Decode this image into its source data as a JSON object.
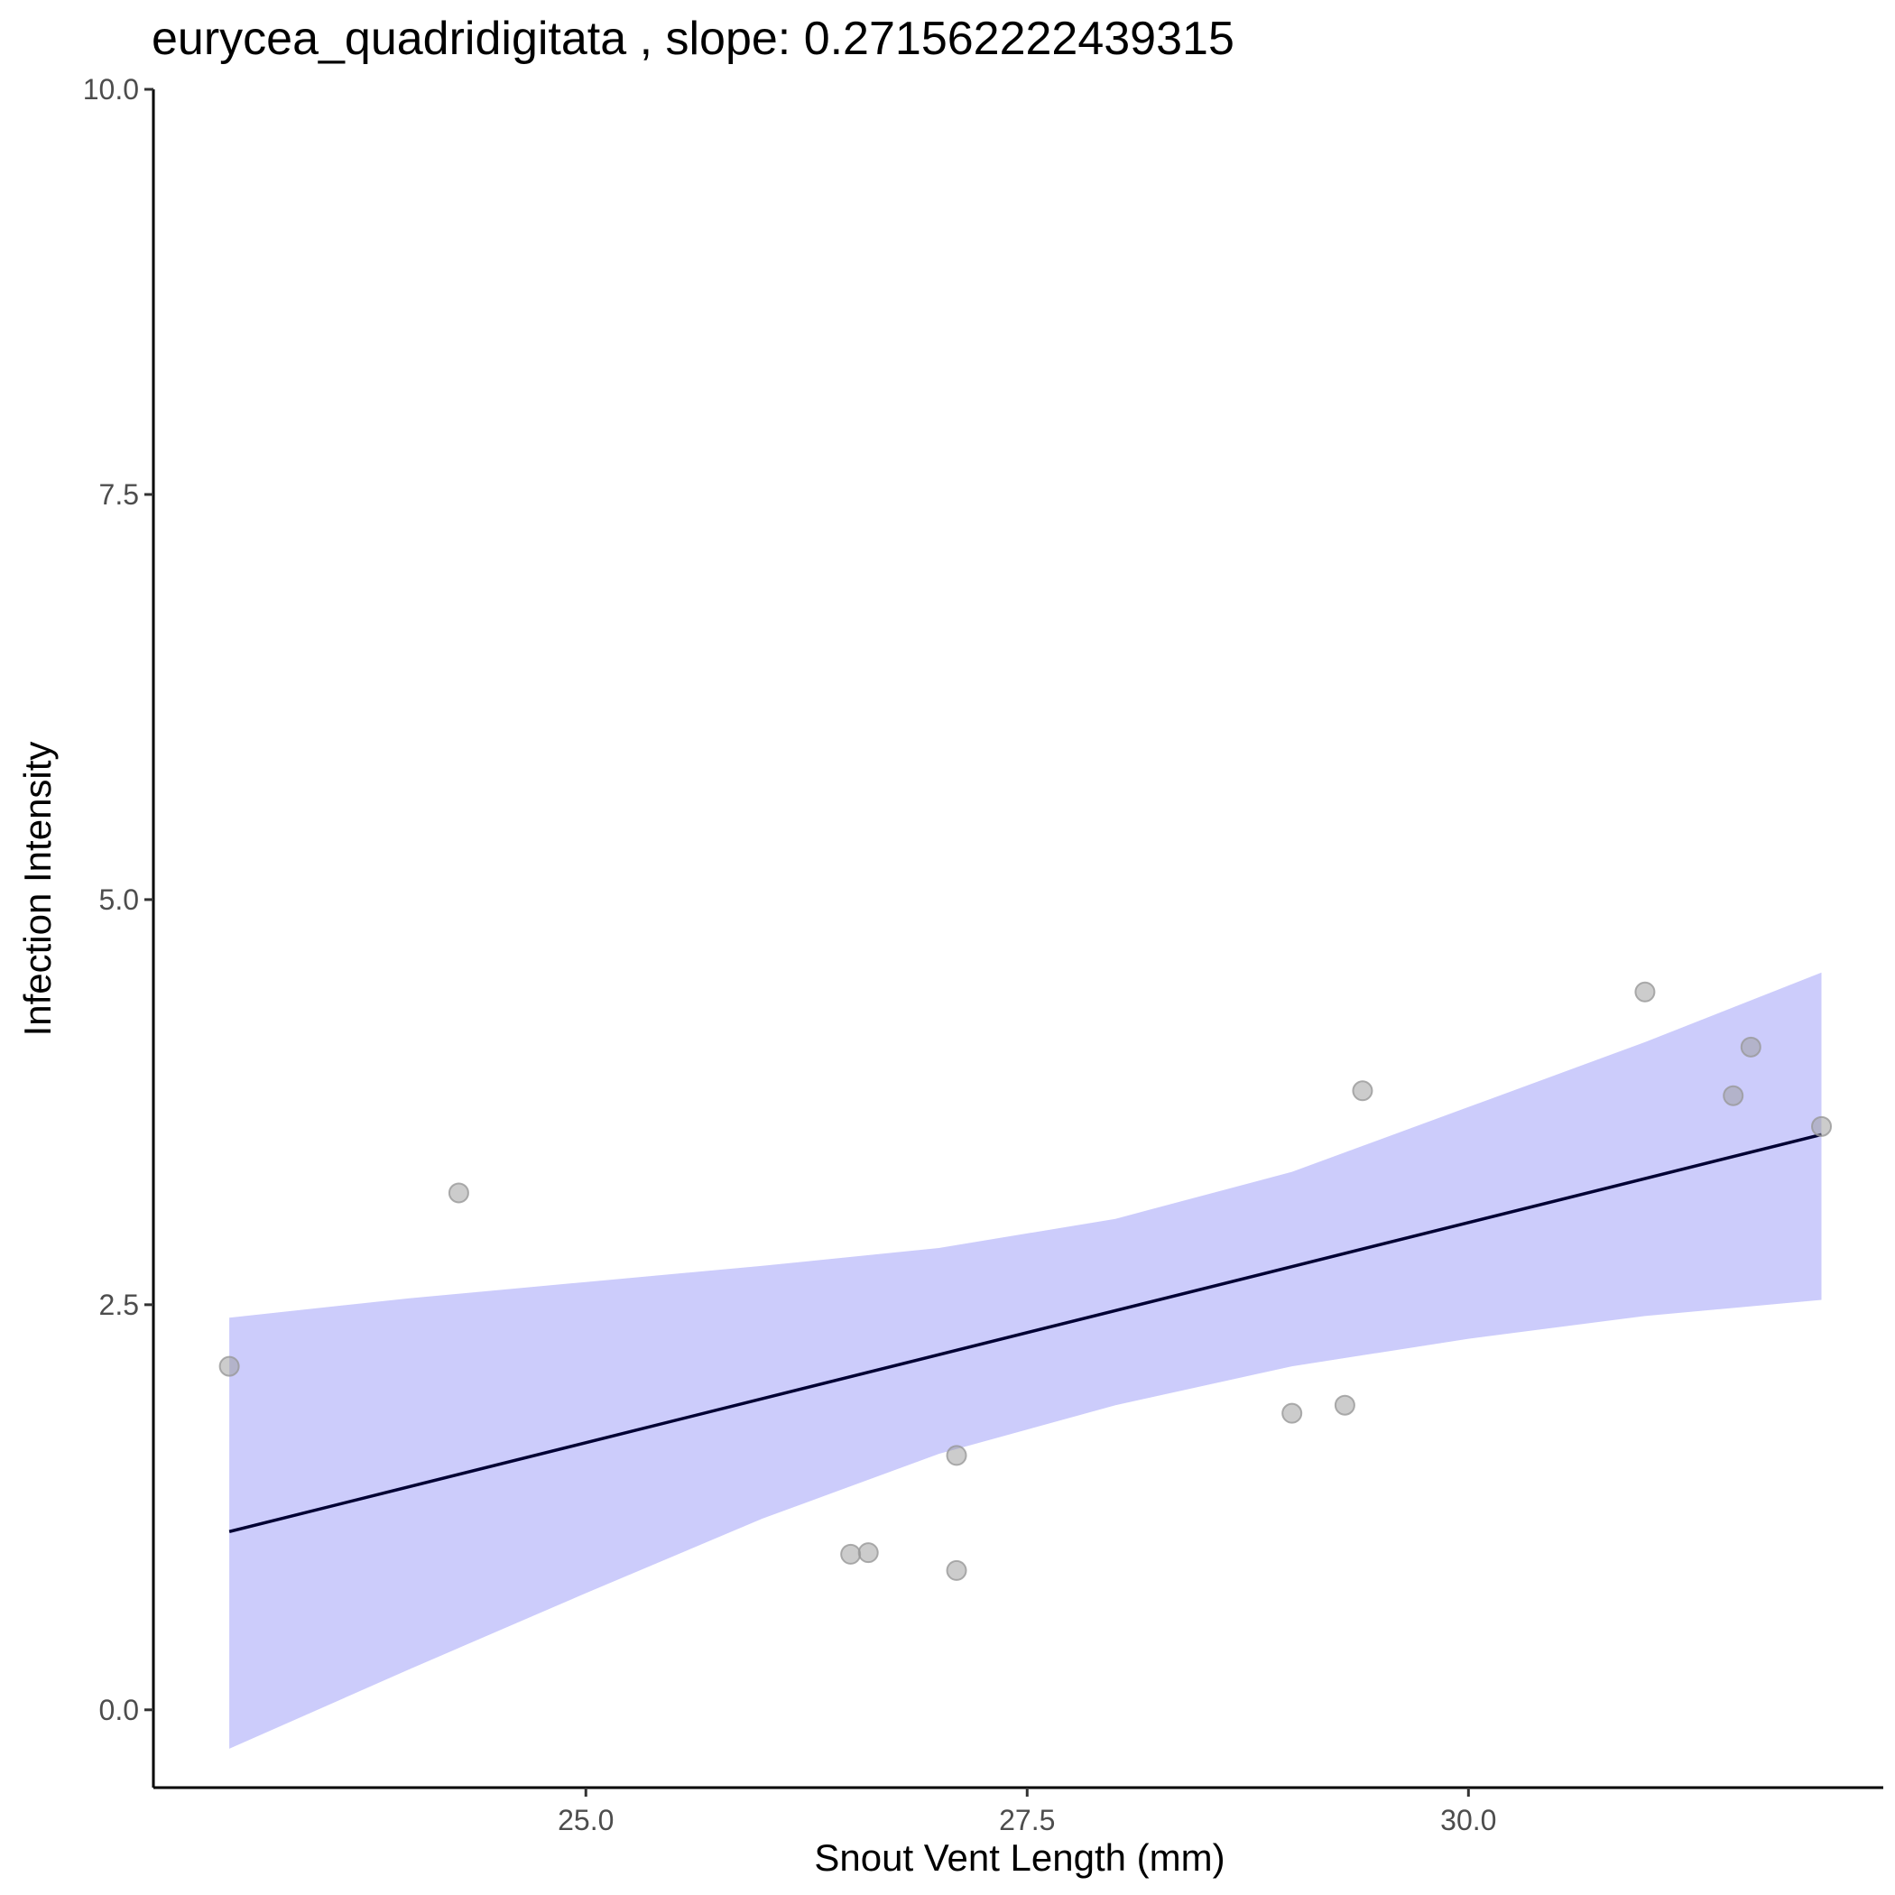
{
  "chart_data": {
    "type": "scatter",
    "title": "eurycea_quadridigitata , slope: 0.271562222439315",
    "xlabel": "Snout Vent Length (mm)",
    "ylabel": "Infection Intensity",
    "xlim": [
      22.55,
      32.35
    ],
    "ylim": [
      -0.48,
      10.0
    ],
    "x_ticks": [
      25.0,
      27.5,
      30.0
    ],
    "x_tick_labels": [
      "25.0",
      "27.5",
      "30.0"
    ],
    "y_ticks": [
      0.0,
      2.5,
      5.0,
      7.5,
      10.0
    ],
    "y_tick_labels": [
      "0.0",
      "2.5",
      "5.0",
      "7.5",
      "10.0"
    ],
    "grid": false,
    "points": [
      {
        "x": 22.98,
        "y": 2.12
      },
      {
        "x": 24.28,
        "y": 3.19
      },
      {
        "x": 26.5,
        "y": 0.96
      },
      {
        "x": 26.6,
        "y": 0.97
      },
      {
        "x": 27.1,
        "y": 1.57
      },
      {
        "x": 27.1,
        "y": 0.86
      },
      {
        "x": 29.0,
        "y": 1.83
      },
      {
        "x": 29.3,
        "y": 1.88
      },
      {
        "x": 29.4,
        "y": 3.82
      },
      {
        "x": 31.0,
        "y": 4.43
      },
      {
        "x": 31.5,
        "y": 3.79
      },
      {
        "x": 31.6,
        "y": 4.09
      },
      {
        "x": 32.0,
        "y": 3.6
      }
    ],
    "trend_line": {
      "x": [
        22.98,
        32.0
      ],
      "y": [
        1.1,
        3.55
      ]
    },
    "confidence_band": {
      "x": [
        22.98,
        24.0,
        25.0,
        26.0,
        27.0,
        28.0,
        29.0,
        30.0,
        31.0,
        32.0
      ],
      "upper": [
        2.42,
        2.54,
        2.64,
        2.74,
        2.85,
        3.03,
        3.32,
        3.72,
        4.12,
        4.55
      ],
      "lower": [
        -0.24,
        0.25,
        0.72,
        1.18,
        1.58,
        1.88,
        2.12,
        2.29,
        2.43,
        2.53
      ]
    },
    "colors": {
      "points": "#999999",
      "line": "#000033",
      "band": "#ccccfb",
      "axis": "#000000",
      "tick_label": "#4d4d4d"
    }
  }
}
